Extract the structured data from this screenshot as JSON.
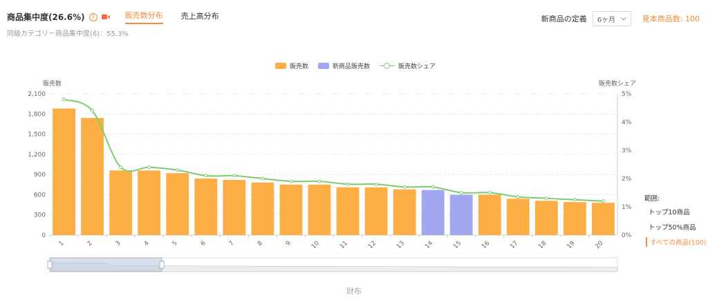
{
  "header": {
    "title": "商品集中度(26.6%)",
    "help_glyph": "?",
    "tabs": [
      {
        "label": "販売数分布",
        "active": true
      },
      {
        "label": "売上高分布",
        "active": false
      }
    ],
    "subtitle": "同級カテゴリー商品集中度(6)：55.3%",
    "definition_label": "新商品の定義",
    "definition_value": "6ヶ月",
    "sample_count": "見本商品数: 100"
  },
  "range": {
    "title": "範囲:",
    "options": [
      {
        "label": "トップ10商品",
        "active": false
      },
      {
        "label": "トップ50%商品",
        "active": false
      },
      {
        "label": "すべての商品(100)",
        "active": true
      }
    ]
  },
  "footer": {
    "label": "财布"
  },
  "colors": {
    "sales": "#fdae45",
    "new_sales": "#a1a8ef",
    "share": "#7ccb6e",
    "accent": "#f08c3a"
  },
  "chart_data": {
    "type": "bar",
    "categories": [
      "1",
      "2",
      "3",
      "4",
      "5",
      "6",
      "7",
      "8",
      "9",
      "10",
      "11",
      "12",
      "13",
      "14",
      "15",
      "16",
      "17",
      "18",
      "19",
      "20"
    ],
    "series": [
      {
        "name": "販売数",
        "values": [
          1880,
          1740,
          960,
          960,
          920,
          840,
          820,
          780,
          750,
          750,
          710,
          710,
          680,
          null,
          null,
          600,
          540,
          510,
          490,
          480
        ]
      },
      {
        "name": "新商品販売数",
        "values": [
          null,
          null,
          null,
          null,
          null,
          null,
          null,
          null,
          null,
          null,
          null,
          null,
          null,
          670,
          600,
          null,
          null,
          null,
          null,
          null
        ]
      },
      {
        "name": "販売数シェア",
        "type": "line",
        "axis": "right",
        "values": [
          4.8,
          4.4,
          2.4,
          2.4,
          2.3,
          2.1,
          2.1,
          2.0,
          1.9,
          1.9,
          1.8,
          1.8,
          1.7,
          1.7,
          1.5,
          1.5,
          1.35,
          1.3,
          1.25,
          1.2
        ]
      }
    ],
    "ylabel": "販売数",
    "ylabel_right": "販売数シェア",
    "ylim": [
      0,
      2100
    ],
    "yticks": [
      "0",
      "300",
      "600",
      "900",
      "1,200",
      "1,500",
      "1,800",
      "2,100"
    ],
    "ylim_right": [
      0,
      5
    ],
    "yticks_right": [
      "0%",
      "1%",
      "2%",
      "3%",
      "4%",
      "5%"
    ],
    "legend": [
      "販売数",
      "新商品販売数",
      "販売数シェア"
    ],
    "legend_position": "top-center",
    "grid": true
  }
}
